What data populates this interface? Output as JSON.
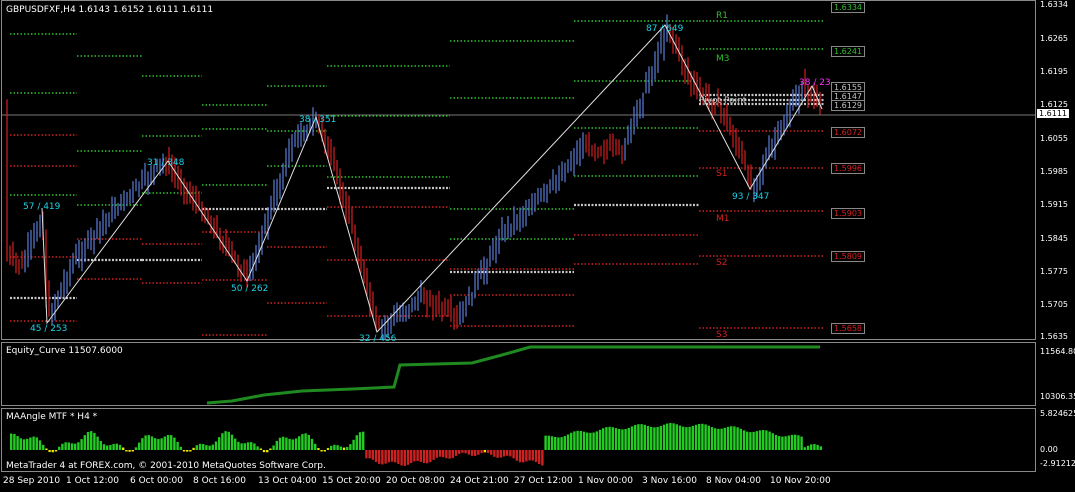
{
  "main": {
    "header": "GBPUSDFXF,H4  1.6143 1.6152 1.6111 1.6111",
    "price_axis": [
      "1.6334",
      "1.6265",
      "1.6195",
      "1.6125",
      "1.6055",
      "1.5985",
      "1.5915",
      "1.5845",
      "1.5775",
      "1.5705",
      "1.5635"
    ],
    "current_price": "1.6111",
    "pivot_boxes": [
      {
        "value": "1.6334",
        "color": "#2fbf2f"
      },
      {
        "value": "1.6241",
        "color": "#2fbf2f"
      },
      {
        "value": "1.6155",
        "color": "#c0c0c0"
      },
      {
        "value": "1.6147",
        "color": "#c0c0c0"
      },
      {
        "value": "1.6129",
        "color": "#c0c0c0"
      },
      {
        "value": "1.6072",
        "color": "#d22020"
      },
      {
        "value": "1.5996",
        "color": "#d22020"
      },
      {
        "value": "1.5903",
        "color": "#d22020"
      },
      {
        "value": "1.5809",
        "color": "#d22020"
      },
      {
        "value": "1.5658",
        "color": "#d22020"
      }
    ],
    "level_labels": [
      {
        "text": "R1",
        "color": "#2fbf2f"
      },
      {
        "text": "M3",
        "color": "#2fbf2f"
      },
      {
        "text": "Pivot Point",
        "color": "#bdbdbd"
      },
      {
        "text": "S1",
        "color": "#d22020"
      },
      {
        "text": "M1",
        "color": "#d22020"
      },
      {
        "text": "S2",
        "color": "#d22020"
      },
      {
        "text": "S3",
        "color": "#d22020"
      }
    ],
    "zigzag_labels": [
      "57 / 419",
      "45 / 253",
      "31 / 348",
      "50 / 262",
      "38 / 351",
      "32 / 456",
      "87 / 649",
      "93 / 347",
      "38 / 23"
    ],
    "colors": {
      "up": "#5b7fd6",
      "down": "#d42020",
      "zigzag": "#e0e0e0",
      "zz_label": "#19d4e6",
      "magenta": "#ff33ff"
    }
  },
  "equity": {
    "header": "Equity_Curve 11507.6000",
    "axis": [
      "11564.80",
      "10306.35"
    ],
    "color": "#1f8a1f"
  },
  "indicator": {
    "header": "MAAngle MTF * H4 *",
    "axis": [
      "5.824625",
      "0.00",
      "-2.912125"
    ],
    "copyright": "MetaTrader 4 at FOREX.com, © 2001-2010 MetaQuotes Software Corp.",
    "colors": {
      "pos": "#22cc22",
      "neg": "#cc2222",
      "neutral": "#e6e600"
    }
  },
  "time_axis": [
    "28 Sep 2010",
    "1 Oct 12:00",
    "6 Oct 00:00",
    "8 Oct 16:00",
    "13 Oct 04:00",
    "15 Oct 20:00",
    "20 Oct 08:00",
    "24 Oct 21:00",
    "27 Oct 12:00",
    "1 Nov 00:00",
    "3 Nov 16:00",
    "8 Nov 04:00",
    "10 Nov 20:00"
  ]
}
